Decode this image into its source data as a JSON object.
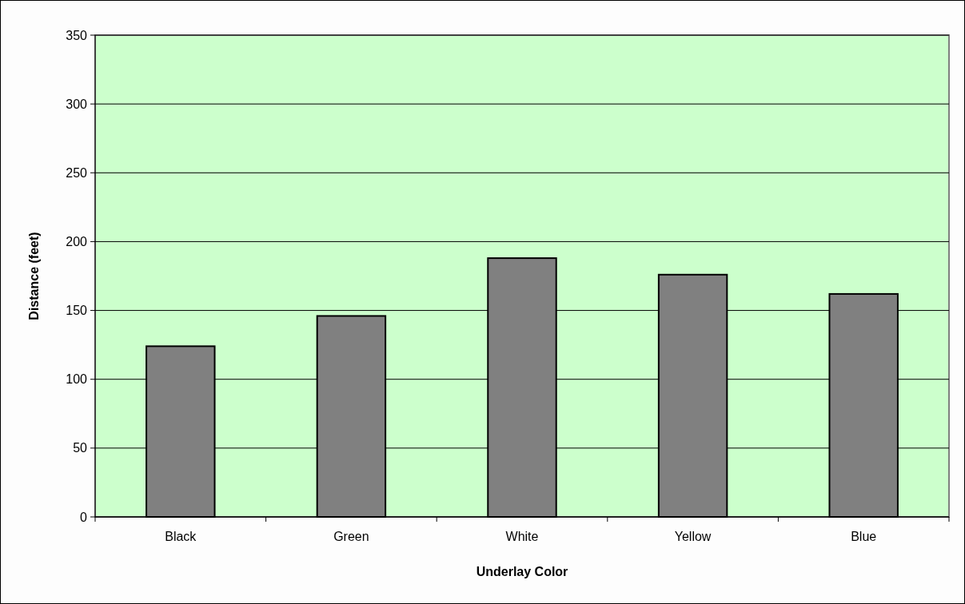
{
  "chart_data": {
    "type": "bar",
    "xlabel": "Underlay Color",
    "ylabel": "Distance (feet)",
    "categories": [
      "Black",
      "Green",
      "White",
      "Yellow",
      "Blue"
    ],
    "values": [
      124,
      146,
      188,
      176,
      162
    ],
    "color": "#808080",
    "ylim": [
      0,
      350
    ],
    "yticks": [
      0,
      50,
      100,
      150,
      200,
      250,
      300,
      350
    ],
    "grid": "y"
  }
}
